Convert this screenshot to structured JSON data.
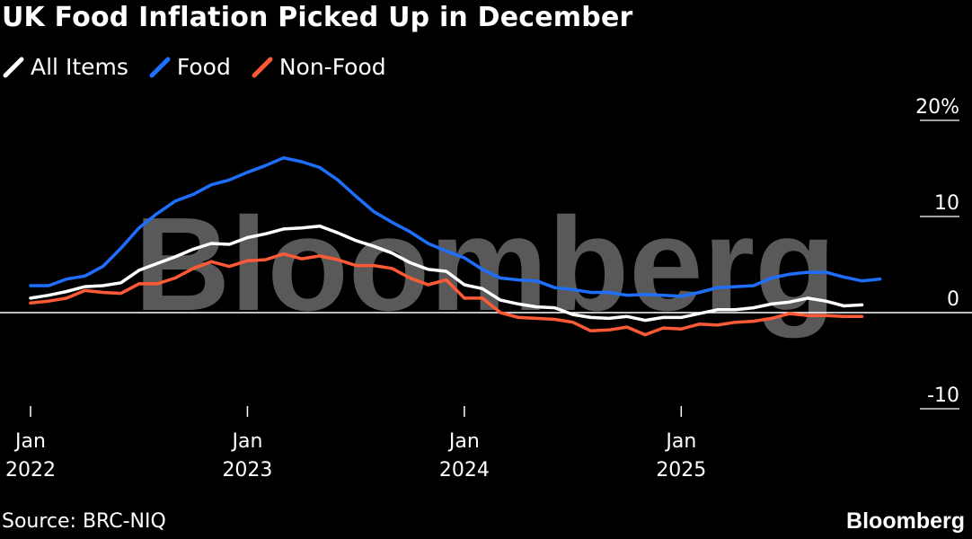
{
  "chart_data": {
    "type": "line",
    "title": "UK Food Inflation Picked Up in December",
    "xlabel": "",
    "ylabel": "",
    "ylim": [
      -10,
      20
    ],
    "yticks": [
      {
        "value": 20,
        "label": "20%"
      },
      {
        "value": 10,
        "label": "10"
      },
      {
        "value": 0,
        "label": "0"
      },
      {
        "value": -10,
        "label": "-10"
      }
    ],
    "xticks": [
      {
        "month": 0,
        "line1": "Jan",
        "line2": "2022"
      },
      {
        "month": 12,
        "line1": "Jan",
        "line2": "2023"
      },
      {
        "month": 24,
        "line1": "Jan",
        "line2": "2024"
      },
      {
        "month": 36,
        "line1": "Jan",
        "line2": "2025"
      }
    ],
    "x_months": [
      0,
      1,
      2,
      3,
      4,
      5,
      6,
      7,
      8,
      9,
      10,
      11,
      12,
      13,
      14,
      15,
      16,
      17,
      18,
      19,
      20,
      21,
      22,
      23,
      24,
      25,
      26,
      27,
      28,
      29,
      30,
      31,
      32,
      33,
      34,
      35,
      36,
      37,
      38,
      39,
      40,
      41,
      42,
      43,
      44,
      45,
      46,
      47
    ],
    "series": [
      {
        "name": "All Items",
        "color": "#ffffff",
        "values": [
          1.5,
          1.8,
          2.2,
          2.7,
          2.8,
          3.1,
          4.4,
          5.1,
          5.8,
          6.6,
          7.2,
          7.1,
          7.8,
          8.2,
          8.7,
          8.8,
          9.0,
          8.3,
          7.5,
          6.9,
          6.2,
          5.2,
          4.5,
          4.3,
          2.9,
          2.5,
          1.3,
          0.9,
          0.6,
          0.5,
          -0.2,
          -0.5,
          -0.6,
          -0.4,
          -0.8,
          -0.5,
          -0.5,
          -0.1,
          0.3,
          0.3,
          0.5,
          0.9,
          1.1,
          1.5,
          1.2,
          0.7,
          0.8,
          null
        ]
      },
      {
        "name": "Food",
        "color": "#1f6fff",
        "values": [
          2.8,
          2.8,
          3.5,
          3.8,
          4.8,
          6.7,
          8.8,
          10.3,
          11.6,
          12.3,
          13.3,
          13.8,
          14.6,
          15.3,
          16.1,
          15.7,
          15.1,
          13.8,
          12.1,
          10.5,
          9.4,
          8.4,
          7.2,
          6.4,
          5.7,
          4.5,
          3.6,
          3.4,
          3.3,
          2.6,
          2.4,
          2.1,
          2.1,
          1.8,
          1.9,
          1.8,
          1.7,
          2.1,
          2.6,
          2.7,
          2.8,
          3.6,
          4.0,
          4.2,
          4.2,
          3.7,
          3.3,
          3.5
        ]
      },
      {
        "name": "Non-Food",
        "color": "#ff5a36",
        "values": [
          1.0,
          1.2,
          1.5,
          2.3,
          2.1,
          2.0,
          3.0,
          3.0,
          3.6,
          4.6,
          5.3,
          4.8,
          5.4,
          5.5,
          6.1,
          5.6,
          5.9,
          5.5,
          4.9,
          4.9,
          4.6,
          3.6,
          2.9,
          3.4,
          1.5,
          1.5,
          0.0,
          -0.5,
          -0.6,
          -0.7,
          -1.0,
          -1.9,
          -1.8,
          -1.5,
          -2.3,
          -1.6,
          -1.7,
          -1.2,
          -1.3,
          -1.0,
          -0.9,
          -0.6,
          -0.1,
          -0.3,
          -0.3,
          -0.4,
          -0.4,
          null
        ]
      }
    ],
    "annotations": [
      "Bloomberg"
    ]
  },
  "source": "Source: BRC-NIQ",
  "brand": "Bloomberg"
}
